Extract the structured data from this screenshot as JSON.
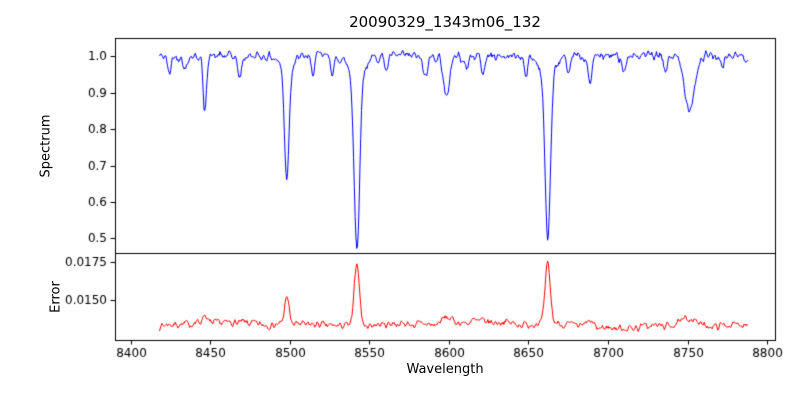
{
  "chart_data": {
    "type": "line",
    "title": "20090329_1343m06_132",
    "xlabel": "Wavelength",
    "grid": false,
    "legend": "none",
    "x_range": [
      8390,
      8805
    ],
    "x_ticks": [
      8400,
      8450,
      8500,
      8550,
      8600,
      8650,
      8700,
      8750,
      8800
    ],
    "data_x_range": [
      8418,
      8788,
      0.5
    ],
    "line_format": [
      "center_wavelength",
      "depth_or_height",
      "sigma"
    ],
    "panels": [
      {
        "name": "spectrum",
        "ylabel": "Spectrum",
        "line_color": "#0000ff",
        "ylim": [
          0.46,
          1.05
        ],
        "y_ticks": [
          0.5,
          0.6,
          0.7,
          0.8,
          0.9,
          1.0
        ],
        "y_tick_labels": [
          "0.5",
          "0.6",
          "0.7",
          "0.8",
          "0.9",
          "1.0"
        ],
        "continuum": 1.0,
        "noise_amplitude": 0.02,
        "noise_seed": 42,
        "absorption_lines": [
          [
            8424.1,
            0.05,
            1.0
          ],
          [
            8434.0,
            0.04,
            1.0
          ],
          [
            8446.4,
            0.16,
            1.0
          ],
          [
            8468.4,
            0.06,
            1.2
          ],
          [
            8498.0,
            0.3,
            1.4
          ],
          [
            8498.0,
            0.035,
            4.0
          ],
          [
            8514.1,
            0.05,
            1.0
          ],
          [
            8527.0,
            0.05,
            1.0
          ],
          [
            8542.1,
            0.48,
            1.7
          ],
          [
            8542.1,
            0.05,
            5.0
          ],
          [
            8560.8,
            0.04,
            1.0
          ],
          [
            8585.0,
            0.06,
            1.5
          ],
          [
            8598.4,
            0.12,
            1.7
          ],
          [
            8611.0,
            0.04,
            1.0
          ],
          [
            8621.4,
            0.05,
            1.0
          ],
          [
            8648.5,
            0.05,
            1.0
          ],
          [
            8662.1,
            0.455,
            1.7
          ],
          [
            8662.1,
            0.045,
            5.0
          ],
          [
            8674.8,
            0.06,
            1.0
          ],
          [
            8688.6,
            0.08,
            1.2
          ],
          [
            8710.2,
            0.04,
            1.0
          ],
          [
            8736.0,
            0.04,
            1.2
          ],
          [
            8751.2,
            0.14,
            3.2
          ],
          [
            8772.0,
            0.04,
            1.0
          ]
        ]
      },
      {
        "name": "error",
        "ylabel": "Error",
        "line_color": "#ff0000",
        "ylim": [
          0.0124,
          0.0181
        ],
        "y_ticks": [
          0.015,
          0.0175
        ],
        "y_tick_labels": [
          "0.0150",
          "0.0175"
        ],
        "baseline": 0.01345,
        "slope": -5e-07,
        "noise_amplitude": 0.00035,
        "noise_seed": 7,
        "peaks": [
          [
            8446.4,
            0.0006,
            1.2
          ],
          [
            8498.0,
            0.0019,
            1.3
          ],
          [
            8542.1,
            0.0042,
            1.6
          ],
          [
            8598.4,
            0.0004,
            3.0
          ],
          [
            8620.0,
            0.0002,
            12.0
          ],
          [
            8662.1,
            0.0039,
            1.6
          ],
          [
            8688.6,
            0.0003,
            2.0
          ],
          [
            8751.2,
            0.0005,
            4.0
          ]
        ]
      }
    ]
  }
}
